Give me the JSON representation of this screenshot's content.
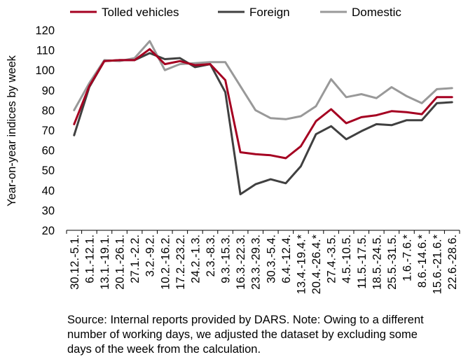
{
  "chart_data": {
    "type": "line",
    "ylabel": "Year-on-year indices by week",
    "xlabel": "",
    "ylim": [
      20,
      120
    ],
    "yticks": [
      20,
      30,
      40,
      50,
      60,
      70,
      80,
      90,
      100,
      110,
      120
    ],
    "grid": false,
    "legend_position": "top",
    "categories": [
      "30.12.-5.1.",
      "6.1.-12.1.",
      "13.1.-19.1.",
      "20.1.-26.1.",
      "27.1.-2.2.",
      "3.2.-9.2.",
      "10.2.-16.2.",
      "17.2.-23.2.",
      "24.2.-1.3.",
      "2.3.-8.3.",
      "9.3.-15.3.",
      "16.3.-22.3.",
      "23.3.-29.3.",
      "30.3.-5.4.",
      "6.4.-12.4.",
      "13.4.-19.4.*",
      "20.4.-26.4.*",
      "27.4.-3.5.",
      "4.5.-10.5.",
      "11.5.-17.5.",
      "18.5.-24.5.",
      "25.5.-31.5.",
      "1.6.-7.6.*",
      "8.6.-14.6.*",
      "15.6.-21.6.*",
      "22.6.-28.6."
    ],
    "series": [
      {
        "name": "Tolled vehicles",
        "color": "#a50021",
        "values": [
          73,
          92,
          104.5,
          105,
          105,
          110.5,
          103,
          104.5,
          102.5,
          103,
          95,
          59,
          58,
          57.5,
          56,
          62,
          74.5,
          80.5,
          73.5,
          76.5,
          77.5,
          79.5,
          79,
          78,
          86.5,
          86.5
        ]
      },
      {
        "name": "Foreign",
        "color": "#404040",
        "values": [
          67.5,
          91.5,
          104.5,
          105,
          105,
          108.5,
          105.5,
          106,
          101.5,
          103,
          89,
          38,
          43,
          45.5,
          43.5,
          52,
          68,
          72,
          65.5,
          69.5,
          73,
          72.5,
          75,
          75,
          83.5,
          84
        ]
      },
      {
        "name": "Domestic",
        "color": "#999999",
        "values": [
          80,
          93.5,
          105,
          104.5,
          106,
          114.5,
          100,
          103,
          103.5,
          104,
          104,
          92,
          80,
          76,
          75.5,
          77,
          82,
          95.5,
          86.5,
          88,
          86,
          91.5,
          87,
          83.5,
          90.5,
          91
        ]
      }
    ]
  },
  "footnote": {
    "lines": [
      "Source: Internal reports provided by DARS. Note: Owing to a different",
      "number of working days, we adjusted the dataset by excluding some",
      "days of the week from the calculation."
    ]
  }
}
